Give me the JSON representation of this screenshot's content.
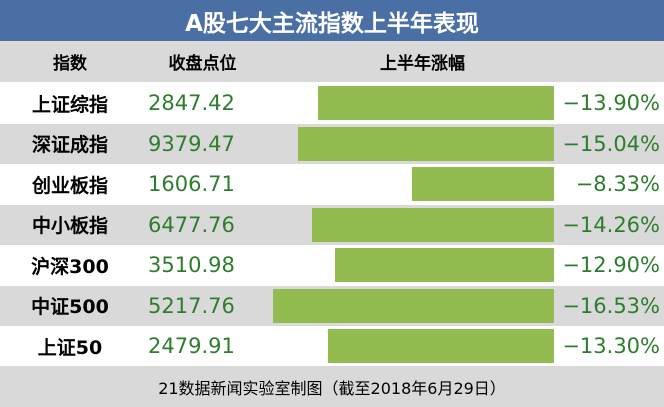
{
  "title": "A股七大主流指数上半年表现",
  "headers": {
    "index": "指数",
    "close": "收盘点位",
    "change": "上半年涨幅"
  },
  "colors": {
    "title_bg": "#4a6fa5",
    "bar": "#92bb50",
    "value_text": "#2e7d2e",
    "stripe": "#d9d9d9"
  },
  "chart_data": {
    "type": "bar",
    "title": "A股七大主流指数上半年表现",
    "categories": [
      "上证综指",
      "深证成指",
      "创业板指",
      "中小板指",
      "沪深300",
      "中证500",
      "上证50"
    ],
    "close_values": [
      "2847.42",
      "9379.47",
      "1606.71",
      "6477.76",
      "3510.98",
      "5217.76",
      "2479.91"
    ],
    "values": [
      -13.9,
      -15.04,
      -8.33,
      -14.26,
      -12.9,
      -16.53,
      -13.3
    ],
    "value_labels": [
      "−13.90%",
      "−15.04%",
      "−8.33%",
      "−14.26%",
      "−12.90%",
      "−16.53%",
      "−13.30%"
    ]
  },
  "footer": "21数据新闻实验室制图（截至2018年6月29日）"
}
